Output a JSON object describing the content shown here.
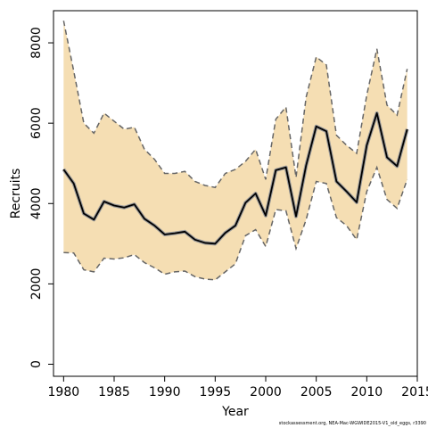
{
  "chart_data": {
    "type": "line",
    "xlabel": "Year",
    "ylabel": "Recruits",
    "xlim": [
      1979,
      2015
    ],
    "ylim": [
      -300,
      8800
    ],
    "xticks": [
      1980,
      1985,
      1990,
      1995,
      2000,
      2005,
      2010,
      2015
    ],
    "yticks": [
      0,
      2000,
      4000,
      6000,
      8000
    ],
    "grid": false,
    "legend": "none",
    "colors": {
      "band": "#f5deb3",
      "line": "#000000",
      "dashed": "#666666"
    },
    "x": [
      1980,
      1981,
      1982,
      1983,
      1984,
      1985,
      1986,
      1987,
      1988,
      1989,
      1990,
      1991,
      1992,
      1993,
      1994,
      1995,
      1996,
      1997,
      1998,
      1999,
      2000,
      2001,
      2002,
      2003,
      2004,
      2005,
      2006,
      2007,
      2008,
      2009,
      2010,
      2011,
      2012,
      2013,
      2014
    ],
    "series": [
      {
        "role": "estimate",
        "values": [
          4850,
          4500,
          3750,
          3600,
          4050,
          3950,
          3900,
          3980,
          3620,
          3450,
          3230,
          3260,
          3300,
          3100,
          3020,
          3000,
          3270,
          3450,
          4020,
          4250,
          3700,
          4830,
          4900,
          3680,
          4950,
          5920,
          5800,
          4550,
          4300,
          4030,
          5450,
          6250,
          5150,
          4930,
          5850
        ]
      },
      {
        "role": "upper",
        "values": [
          8550,
          7300,
          6000,
          5750,
          6250,
          6050,
          5850,
          5900,
          5350,
          5100,
          4750,
          4750,
          4800,
          4550,
          4450,
          4400,
          4750,
          4850,
          5050,
          5350,
          4600,
          6100,
          6400,
          4650,
          6650,
          7650,
          7450,
          5700,
          5450,
          5250,
          6700,
          7850,
          6450,
          6200,
          7350
        ]
      },
      {
        "role": "lower",
        "values": [
          2780,
          2770,
          2350,
          2300,
          2640,
          2620,
          2650,
          2730,
          2530,
          2400,
          2240,
          2300,
          2320,
          2180,
          2120,
          2100,
          2300,
          2500,
          3200,
          3350,
          2930,
          3850,
          3820,
          2880,
          3600,
          4550,
          4500,
          3650,
          3450,
          3100,
          4300,
          4900,
          4100,
          3880,
          4600
        ]
      }
    ]
  },
  "footnote": "stockassessment.org, NEA-Mac-WGWIDE2015-V1_old_eggs, r3390"
}
